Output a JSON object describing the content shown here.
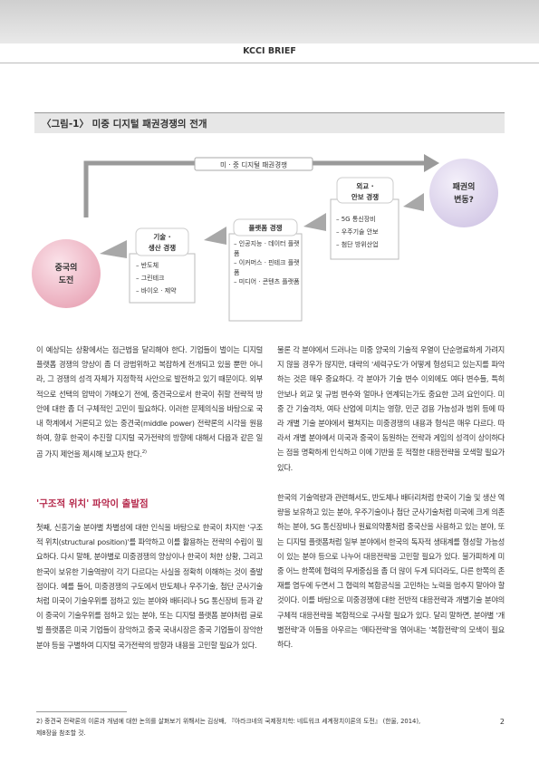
{
  "header": {
    "title": "KCCI BRIEF"
  },
  "figure": {
    "title": "〈그림-1〉 미중 디지털 패권경쟁의 전개",
    "arc_label": "미 · 중 디지털 패권경쟁",
    "start": {
      "line1": "중국의",
      "line2": "도전"
    },
    "stages": [
      {
        "line1": "기술 ·",
        "line2": "생산 경쟁",
        "items": [
          "– 반도체",
          "– 그린테크",
          "– 바이오 · 제약"
        ]
      },
      {
        "line1": "플랫폼 경쟁",
        "items": [
          "– 인공지능 · 데이터 플랫폼",
          "– 이커머스 · 핀테크 플랫폼",
          "– 미디어 · 콘텐츠 플랫폼"
        ]
      },
      {
        "line1": "외교 ·",
        "line2": "안보 경쟁",
        "items": [
          "– 5G 통신장비",
          "– 우주기술 안보",
          "– 첨단 방위산업"
        ]
      }
    ],
    "end": {
      "line1": "패권의",
      "line2": "변동?"
    }
  },
  "body": {
    "left_paragraph_1": "이 예상되는 상황에서는 접근법을 달리해야 한다. 기업들이 벌이는 디지털 플랫폼 경쟁의 양상이 좀 더 광범위하고 복잡하게 전개되고 있을 뿐만 아니라, 그 경쟁의 성격 자체가 지정학적 사안으로 발전하고 있기 때문이다. 외부적으로 선택의 압박이 가해오기 전에, 중견국으로서 한국이 취할 전략적 방안에 대한 좀 더 구체적인 고민이 필요하다. 이러한 문제의식을 바탕으로 국내 학계에서 거론되고 있는 중견국(middle power) 전략론의 시각을 원용하여, 향후 한국이 추진할 디지털 국가전략의 방향에 대해서 다음과 같은 일곱 가지 제언을 제시해 보고자 한다.",
    "footnote_ref": "2)",
    "section_heading": "'구조적 위치' 파악이 출발점",
    "left_paragraph_2": "첫째, 신흥기술 분야별 차별성에 대한 인식을 바탕으로 한국이 차지한 '구조적 위치(structural position)'를 파악하고 이를 활용하는 전략의 수립이 필요하다. 다시 말해, 분야별로 미중경쟁의 양상이나 한국이 처한 상황, 그리고 한국이 보유한 기술역량이 각기 다르다는 사실을 정확히 이해하는 것이 출발점이다. 예를 들어, 미중경쟁의 구도에서 반도체나 우주기술, 첨단 군사기술처럼 미국이 기술우위를 점하고 있는 분야와 배터리나 5G 통신장비 등과 같이 중국이 기술우위를 점하고 있는 분야, 또는 디지털 플랫폼 분야처럼 글로벌 플랫폼은 미국 기업들이 장악하고 중국 국내시장은 중국 기업들이 장악한 분야 등을 구별하여 디지털 국가전략의 방향과 내용을 고민할 필요가 있다.",
    "right_paragraph_1": "물론 각 분야에서 드러나는 미중 양국의 기술적 우열이 단순명료하게 가려지지 않을 경우가 많지만, 대략의 '세력구도'가 어떻게 형성되고 있는지를 파악하는 것은 매우 중요하다. 각 분야가 기술 변수 이외에도 여타 변수들, 특히 안보나 외교 및 규범 변수와 얼마나 연계되는가도 중요한 고려 요인이다. 미중 간 기술격차, 여타 산업에 미치는 영향, 민군 겸용 가능성과 범위 등에 따라 개별 기술 분야에서 펼쳐지는 미중경쟁의 내용과 형식은 매우 다르다. 따라서 개별 분야에서 미국과 중국이 동원하는 전략과 게임의 성격이 상이하다는 점을 명확하게 인식하고 이에 기반을 둔 적절한 대응전략을 모색할 필요가 있다.",
    "right_paragraph_2": "한국의 기술역량과 관련해서도, 반도체나 배터리처럼 한국이 기술 및 생산 역량을 보유하고 있는 분야, 우주기술이나 첨단 군사기술처럼 미국에 크게 의존하는 분야, 5G 통신장비나 원료의약품처럼 중국산을 사용하고 있는 분야, 또는 디지털 플랫폼처럼 일부 분야에서 한국의 독자적 생태계를 형성할 가능성이 있는 분야 등으로 나누어 대응전략을 고민할 필요가 있다. 불가피하게 미중 어느 한쪽에 협력의 무게중심을 좀 더 많이 두게 되더라도, 다른 한쪽의 존재를 염두에 두면서 그 협력의 복합공식을 고민하는 노력을 멈추지 말아야 할 것이다. 이를 바탕으로 미중경쟁에 대한 전반적 대응전략과 개별기술 분야의 구체적 대응전략을 복합적으로 구사할 필요가 있다. 달리 말하면, 분야별 '개별전략'과 이들을 아우르는 '메타전략'을 엮어내는 '복합전략'의 모색이 필요하다."
  },
  "footer": {
    "footnote": "2) 중견국 전략론의 이론과 개념에 대한 논의를 살펴보기 위해서는 김상배, 『아라크네의 국제정치학: 네트워크 세계정치이론의 도전』 (한울, 2014), 제8장을 참조할 것.",
    "page_number": "2"
  }
}
